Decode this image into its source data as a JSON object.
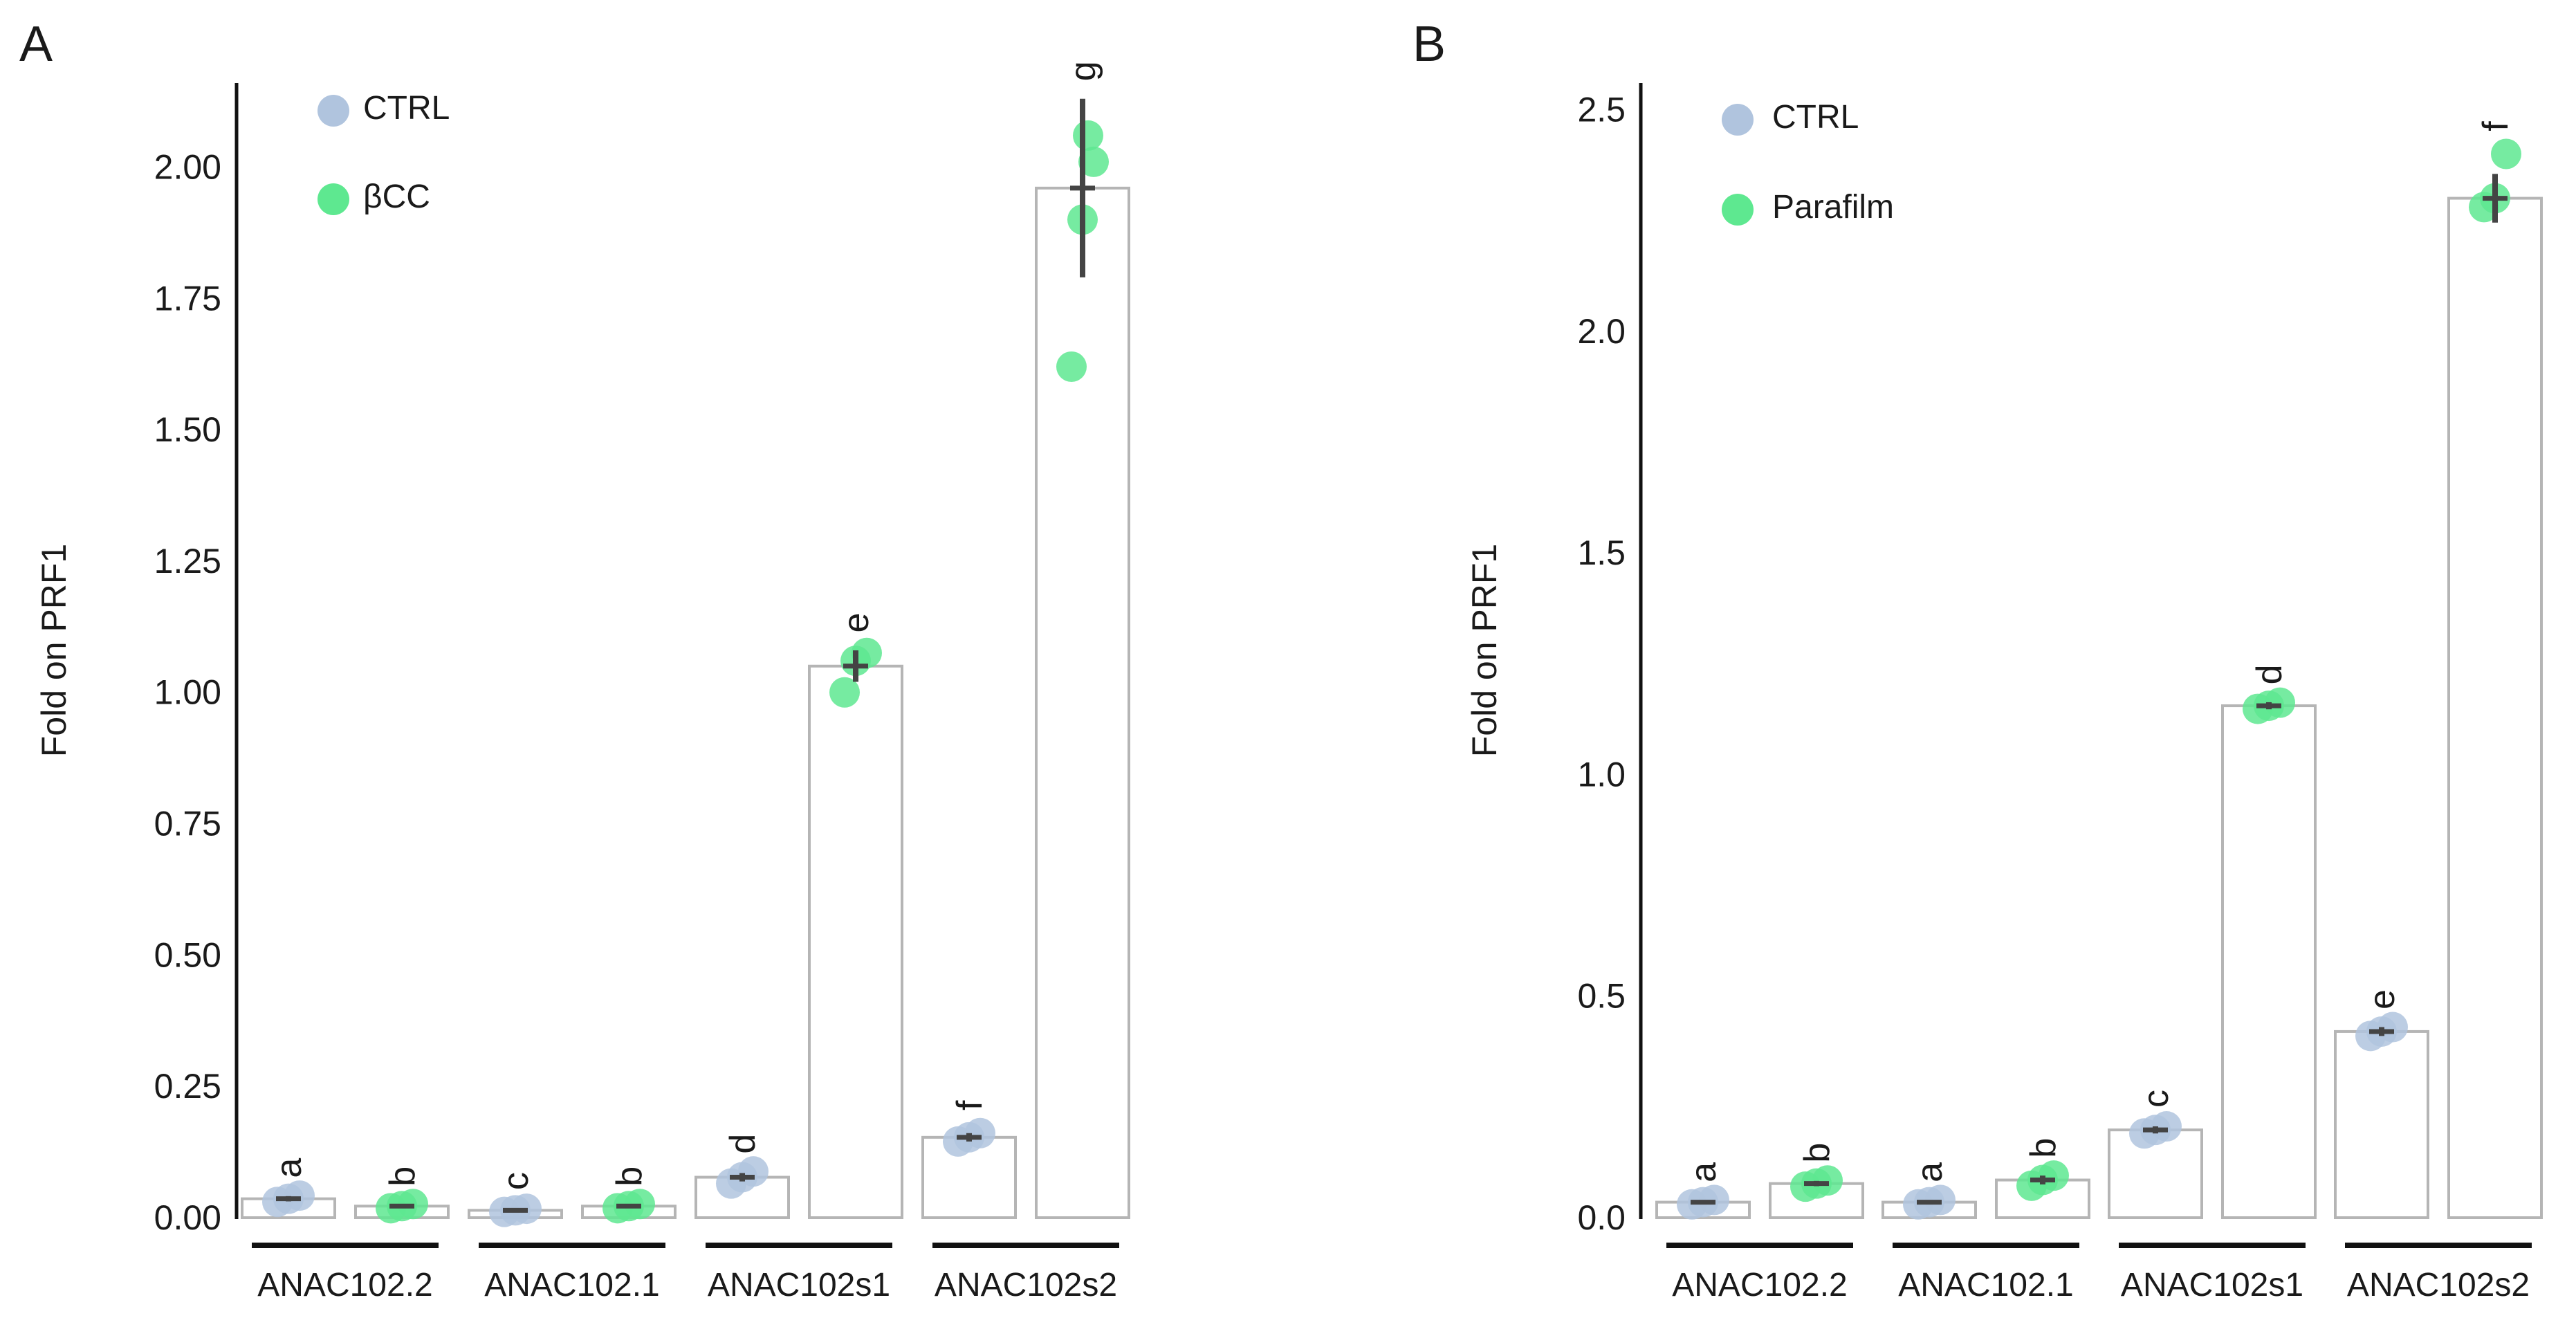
{
  "chart_data": [
    {
      "panel": "A",
      "type": "bar",
      "ylabel": "Fold on PRF1",
      "xlabel": "",
      "ylim": [
        0,
        2.16
      ],
      "yticks": [
        "0.00",
        "0.25",
        "0.50",
        "0.75",
        "1.00",
        "1.25",
        "1.50",
        "1.75",
        "2.00"
      ],
      "ytick_values": [
        0,
        0.25,
        0.5,
        0.75,
        1.0,
        1.25,
        1.5,
        1.75,
        2.0
      ],
      "categories": [
        "ANAC102.2",
        "ANAC102.1",
        "ANAC102s1",
        "ANAC102s2"
      ],
      "legend": [
        {
          "label": "CTRL",
          "color": "#b0c4de"
        },
        {
          "label": "βCC",
          "color": "#5ee890"
        }
      ],
      "legend_position": "top-left",
      "bars": [
        {
          "category": "ANAC102.2",
          "group": "CTRL",
          "value": 0.036,
          "err": 0.005,
          "letter": "a",
          "points": [
            0.03,
            0.036,
            0.042
          ]
        },
        {
          "category": "ANAC102.2",
          "group": "βCC",
          "value": 0.022,
          "err": 0.004,
          "letter": "b",
          "points": [
            0.018,
            0.022,
            0.026
          ]
        },
        {
          "category": "ANAC102.1",
          "group": "CTRL",
          "value": 0.014,
          "err": 0.003,
          "letter": "c",
          "points": [
            0.011,
            0.014,
            0.017
          ]
        },
        {
          "category": "ANAC102.1",
          "group": "βCC",
          "value": 0.022,
          "err": 0.004,
          "letter": "b",
          "points": [
            0.018,
            0.022,
            0.026
          ]
        },
        {
          "category": "ANAC102s1",
          "group": "CTRL",
          "value": 0.077,
          "err": 0.008,
          "letter": "d",
          "points": [
            0.065,
            0.077,
            0.088
          ]
        },
        {
          "category": "ANAC102s1",
          "group": "βCC",
          "value": 1.05,
          "err": 0.03,
          "letter": "e",
          "points": [
            1.0,
            1.06,
            1.075
          ]
        },
        {
          "category": "ANAC102s2",
          "group": "CTRL",
          "value": 0.153,
          "err": 0.008,
          "letter": "f",
          "points": [
            0.145,
            0.153,
            0.161
          ]
        },
        {
          "category": "ANAC102s2",
          "group": "βCC",
          "value": 1.96,
          "err": 0.17,
          "letter": "g",
          "points": [
            1.62,
            1.9,
            2.01,
            2.06
          ]
        }
      ]
    },
    {
      "panel": "B",
      "type": "bar",
      "ylabel": "Fold on PRF1",
      "xlabel": "",
      "ylim": [
        0,
        2.56
      ],
      "yticks": [
        "0.0",
        "0.5",
        "1.0",
        "1.5",
        "2.0",
        "2.5"
      ],
      "ytick_values": [
        0,
        0.5,
        1.0,
        1.5,
        2.0,
        2.5
      ],
      "categories": [
        "ANAC102.2",
        "ANAC102.1",
        "ANAC102s1",
        "ANAC102s2"
      ],
      "legend": [
        {
          "label": "CTRL",
          "color": "#b0c4de"
        },
        {
          "label": "Parafilm",
          "color": "#5ee890"
        }
      ],
      "legend_position": "top-left",
      "bars": [
        {
          "category": "ANAC102.2",
          "group": "CTRL",
          "value": 0.035,
          "err": 0.004,
          "letter": "a",
          "points": [
            0.03,
            0.035,
            0.04
          ]
        },
        {
          "category": "ANAC102.2",
          "group": "Parafilm",
          "value": 0.077,
          "err": 0.006,
          "letter": "b",
          "points": [
            0.07,
            0.077,
            0.084
          ]
        },
        {
          "category": "ANAC102.1",
          "group": "CTRL",
          "value": 0.035,
          "err": 0.004,
          "letter": "a",
          "points": [
            0.03,
            0.035,
            0.04
          ]
        },
        {
          "category": "ANAC102.1",
          "group": "Parafilm",
          "value": 0.085,
          "err": 0.01,
          "letter": "b",
          "points": [
            0.072,
            0.085,
            0.095
          ]
        },
        {
          "category": "ANAC102s1",
          "group": "CTRL",
          "value": 0.198,
          "err": 0.008,
          "letter": "c",
          "points": [
            0.19,
            0.198,
            0.206
          ]
        },
        {
          "category": "ANAC102s1",
          "group": "Parafilm",
          "value": 1.155,
          "err": 0.008,
          "letter": "d",
          "points": [
            1.148,
            1.155,
            1.162
          ]
        },
        {
          "category": "ANAC102s2",
          "group": "CTRL",
          "value": 0.42,
          "err": 0.01,
          "letter": "e",
          "points": [
            0.41,
            0.42,
            0.43
          ]
        },
        {
          "category": "ANAC102s2",
          "group": "Parafilm",
          "value": 2.3,
          "err": 0.055,
          "letter": "f",
          "points": [
            2.28,
            2.3,
            2.4
          ]
        }
      ]
    }
  ]
}
